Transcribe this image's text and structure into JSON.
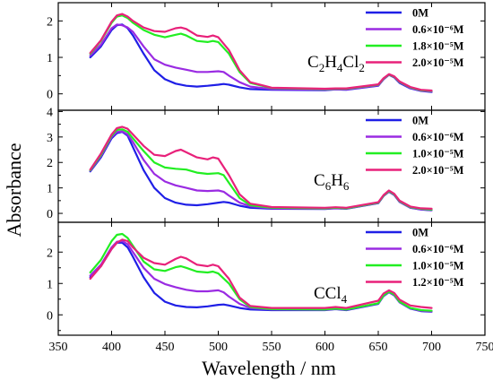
{
  "chart_data": {
    "type": "line",
    "xlabel": "Wavelength / nm",
    "ylabel": "Absorbance",
    "xlim": [
      350,
      750
    ],
    "x_ticks": [
      "350",
      "400",
      "450",
      "500",
      "550",
      "600",
      "650",
      "700",
      "750"
    ],
    "legend_placement": "top-right",
    "grid": false,
    "colors": {
      "blue": "#1f1fe6",
      "violet": "#9a2be2",
      "green": "#22ee22",
      "magenta": "#e8217a"
    },
    "panels": [
      {
        "solvent_label": {
          "base1": "C",
          "sub1": "2",
          "base2": "H",
          "sub2": "4",
          "base3": "Cl",
          "sub3": "2"
        },
        "ylim": [
          -0.45,
          2.5
        ],
        "y_ticks": [
          "0",
          "1",
          "2"
        ],
        "legend": [
          "0M",
          "0.6×10⁻⁶M",
          "1.8×10⁻⁵M",
          "2.0×10⁻⁵M"
        ],
        "series": [
          {
            "name": "0M",
            "color": "blue",
            "x": [
              380,
              390,
              400,
              405,
              410,
              415,
              420,
              430,
              440,
              450,
              460,
              470,
              480,
              490,
              500,
              505,
              510,
              520,
              530,
              550,
              600,
              610,
              620,
              650,
              655,
              660,
              665,
              670,
              680,
              690,
              700
            ],
            "y": [
              1.0,
              1.3,
              1.75,
              1.88,
              1.9,
              1.8,
              1.6,
              1.1,
              0.65,
              0.4,
              0.28,
              0.22,
              0.2,
              0.22,
              0.25,
              0.27,
              0.25,
              0.18,
              0.13,
              0.11,
              0.1,
              0.12,
              0.11,
              0.22,
              0.4,
              0.52,
              0.45,
              0.3,
              0.15,
              0.08,
              0.05
            ]
          },
          {
            "name": "0.6×10⁻⁶M",
            "color": "violet",
            "x": [
              380,
              390,
              400,
              405,
              410,
              415,
              420,
              430,
              440,
              450,
              460,
              470,
              480,
              490,
              500,
              505,
              510,
              520,
              530,
              550,
              600,
              610,
              620,
              650,
              655,
              660,
              665,
              670,
              680,
              690,
              700
            ],
            "y": [
              1.05,
              1.35,
              1.8,
              1.9,
              1.88,
              1.82,
              1.7,
              1.3,
              0.95,
              0.8,
              0.72,
              0.66,
              0.6,
              0.6,
              0.62,
              0.6,
              0.5,
              0.32,
              0.2,
              0.13,
              0.11,
              0.12,
              0.12,
              0.23,
              0.4,
              0.52,
              0.46,
              0.32,
              0.16,
              0.09,
              0.06
            ]
          },
          {
            "name": "1.8×10⁻⁵M",
            "color": "green",
            "x": [
              380,
              390,
              400,
              405,
              410,
              415,
              420,
              430,
              440,
              450,
              460,
              465,
              470,
              480,
              490,
              495,
              500,
              510,
              520,
              530,
              550,
              600,
              610,
              620,
              650,
              655,
              660,
              665,
              670,
              680,
              690,
              700
            ],
            "y": [
              1.1,
              1.45,
              1.95,
              2.12,
              2.15,
              2.08,
              1.95,
              1.75,
              1.62,
              1.55,
              1.62,
              1.65,
              1.6,
              1.45,
              1.42,
              1.45,
              1.42,
              1.1,
              0.6,
              0.3,
              0.16,
              0.13,
              0.14,
              0.14,
              0.25,
              0.42,
              0.53,
              0.47,
              0.33,
              0.18,
              0.1,
              0.08
            ]
          },
          {
            "name": "2.0×10⁻⁵M",
            "color": "magenta",
            "x": [
              380,
              390,
              400,
              405,
              410,
              415,
              420,
              430,
              440,
              450,
              460,
              465,
              470,
              480,
              490,
              495,
              500,
              510,
              520,
              530,
              550,
              600,
              610,
              620,
              650,
              655,
              660,
              665,
              670,
              680,
              690,
              700
            ],
            "y": [
              1.12,
              1.47,
              1.98,
              2.15,
              2.19,
              2.12,
              2.0,
              1.82,
              1.72,
              1.7,
              1.8,
              1.82,
              1.78,
              1.6,
              1.56,
              1.6,
              1.55,
              1.2,
              0.65,
              0.32,
              0.17,
              0.14,
              0.15,
              0.15,
              0.26,
              0.43,
              0.54,
              0.48,
              0.34,
              0.19,
              0.11,
              0.09
            ]
          }
        ]
      },
      {
        "solvent_label": {
          "base1": "C",
          "sub1": "6",
          "base2": "H",
          "sub2": "6",
          "base3": "",
          "sub3": ""
        },
        "ylim": [
          -0.35,
          4.05
        ],
        "y_ticks": [
          "0",
          "1",
          "2",
          "3",
          "4"
        ],
        "legend": [
          "0M",
          "0.6×10⁻⁶M",
          "1.0×10⁻⁵M",
          "2.0×10⁻⁵M"
        ],
        "series": [
          {
            "name": "0M",
            "color": "blue",
            "x": [
              380,
              390,
              400,
              405,
              410,
              415,
              420,
              430,
              440,
              450,
              460,
              470,
              480,
              490,
              500,
              505,
              510,
              520,
              530,
              550,
              600,
              610,
              620,
              650,
              655,
              660,
              665,
              670,
              680,
              690,
              700
            ],
            "y": [
              1.65,
              2.2,
              2.95,
              3.15,
              3.2,
              3.05,
              2.6,
              1.7,
              1.0,
              0.6,
              0.42,
              0.34,
              0.32,
              0.36,
              0.42,
              0.45,
              0.42,
              0.3,
              0.22,
              0.18,
              0.17,
              0.2,
              0.18,
              0.4,
              0.68,
              0.85,
              0.72,
              0.45,
              0.22,
              0.15,
              0.12
            ]
          },
          {
            "name": "0.6×10⁻⁶M",
            "color": "violet",
            "x": [
              380,
              390,
              400,
              405,
              410,
              415,
              420,
              430,
              440,
              450,
              460,
              470,
              480,
              490,
              500,
              505,
              510,
              520,
              530,
              550,
              600,
              610,
              620,
              650,
              655,
              660,
              665,
              670,
              680,
              690,
              700
            ],
            "y": [
              1.68,
              2.25,
              3.0,
              3.2,
              3.22,
              3.1,
              2.8,
              2.1,
              1.55,
              1.25,
              1.1,
              1.0,
              0.9,
              0.88,
              0.9,
              0.85,
              0.7,
              0.42,
              0.28,
              0.2,
              0.18,
              0.21,
              0.19,
              0.41,
              0.69,
              0.86,
              0.73,
              0.46,
              0.23,
              0.16,
              0.13
            ]
          },
          {
            "name": "1.0×10⁻⁵M",
            "color": "green",
            "x": [
              380,
              390,
              400,
              405,
              410,
              415,
              420,
              430,
              440,
              450,
              460,
              470,
              480,
              490,
              500,
              505,
              510,
              520,
              530,
              550,
              600,
              610,
              620,
              650,
              655,
              660,
              665,
              670,
              680,
              690,
              700
            ],
            "y": [
              1.7,
              2.3,
              3.05,
              3.28,
              3.3,
              3.2,
              2.95,
              2.45,
              2.0,
              1.8,
              1.75,
              1.72,
              1.6,
              1.55,
              1.58,
              1.5,
              1.2,
              0.6,
              0.32,
              0.22,
              0.2,
              0.22,
              0.2,
              0.42,
              0.7,
              0.88,
              0.75,
              0.48,
              0.25,
              0.18,
              0.15
            ]
          },
          {
            "name": "2.0×10⁻⁵M",
            "color": "magenta",
            "x": [
              380,
              390,
              400,
              405,
              410,
              415,
              420,
              430,
              440,
              450,
              460,
              465,
              470,
              480,
              490,
              495,
              500,
              510,
              520,
              530,
              550,
              600,
              610,
              620,
              650,
              655,
              660,
              665,
              670,
              680,
              690,
              700
            ],
            "y": [
              1.72,
              2.35,
              3.1,
              3.35,
              3.4,
              3.32,
              3.1,
              2.65,
              2.3,
              2.25,
              2.45,
              2.5,
              2.4,
              2.2,
              2.12,
              2.2,
              2.15,
              1.5,
              0.75,
              0.38,
              0.25,
              0.22,
              0.24,
              0.22,
              0.44,
              0.72,
              0.9,
              0.77,
              0.5,
              0.27,
              0.2,
              0.18
            ]
          }
        ]
      },
      {
        "solvent_label": {
          "base1": "CCl",
          "sub1": "4",
          "base2": "",
          "sub2": "",
          "base3": "",
          "sub3": ""
        },
        "ylim": [
          -0.65,
          2.95
        ],
        "y_ticks": [
          "0",
          "1",
          "2"
        ],
        "legend": [
          "0M",
          "0.6×10⁻⁶M",
          "1.0×10⁻⁵M",
          "1.2×10⁻⁵M"
        ],
        "series": [
          {
            "name": "0M",
            "color": "blue",
            "x": [
              380,
              390,
              400,
              405,
              410,
              415,
              420,
              430,
              440,
              450,
              460,
              470,
              480,
              490,
              500,
              505,
              510,
              520,
              530,
              550,
              600,
              610,
              620,
              650,
              655,
              660,
              665,
              670,
              680,
              690,
              700
            ],
            "y": [
              1.2,
              1.55,
              2.1,
              2.3,
              2.3,
              2.15,
              1.85,
              1.2,
              0.7,
              0.42,
              0.3,
              0.25,
              0.24,
              0.27,
              0.32,
              0.33,
              0.3,
              0.22,
              0.17,
              0.15,
              0.15,
              0.18,
              0.15,
              0.35,
              0.6,
              0.72,
              0.62,
              0.4,
              0.2,
              0.12,
              0.1
            ]
          },
          {
            "name": "0.6×10⁻⁶M",
            "color": "violet",
            "x": [
              380,
              390,
              400,
              405,
              410,
              415,
              420,
              430,
              440,
              450,
              460,
              470,
              480,
              490,
              500,
              505,
              510,
              520,
              530,
              550,
              600,
              610,
              620,
              650,
              655,
              660,
              665,
              670,
              680,
              690,
              700
            ],
            "y": [
              1.25,
              1.6,
              2.15,
              2.33,
              2.35,
              2.25,
              2.0,
              1.5,
              1.15,
              0.98,
              0.88,
              0.8,
              0.75,
              0.75,
              0.78,
              0.72,
              0.58,
              0.35,
              0.22,
              0.17,
              0.16,
              0.19,
              0.16,
              0.36,
              0.61,
              0.73,
              0.63,
              0.41,
              0.21,
              0.13,
              0.11
            ]
          },
          {
            "name": "1.0×10⁻⁵M",
            "color": "green",
            "x": [
              380,
              390,
              400,
              405,
              410,
              415,
              420,
              430,
              440,
              450,
              460,
              465,
              470,
              480,
              490,
              495,
              500,
              510,
              520,
              530,
              550,
              600,
              610,
              620,
              650,
              655,
              660,
              665,
              670,
              680,
              690,
              700
            ],
            "y": [
              1.35,
              1.75,
              2.35,
              2.55,
              2.58,
              2.45,
              2.2,
              1.7,
              1.45,
              1.4,
              1.52,
              1.55,
              1.5,
              1.38,
              1.35,
              1.38,
              1.32,
              1.0,
              0.5,
              0.25,
              0.18,
              0.17,
              0.2,
              0.17,
              0.37,
              0.62,
              0.74,
              0.65,
              0.42,
              0.22,
              0.15,
              0.13
            ]
          },
          {
            "name": "1.2×10⁻⁵M",
            "color": "magenta",
            "x": [
              380,
              390,
              400,
              405,
              410,
              415,
              420,
              430,
              440,
              450,
              460,
              465,
              470,
              480,
              490,
              495,
              500,
              510,
              520,
              530,
              550,
              600,
              610,
              620,
              650,
              655,
              660,
              665,
              670,
              680,
              690,
              700
            ],
            "y": [
              1.15,
              1.55,
              2.1,
              2.3,
              2.4,
              2.35,
              2.15,
              1.82,
              1.65,
              1.6,
              1.78,
              1.85,
              1.8,
              1.6,
              1.55,
              1.6,
              1.55,
              1.15,
              0.55,
              0.28,
              0.22,
              0.22,
              0.25,
              0.22,
              0.45,
              0.68,
              0.78,
              0.7,
              0.48,
              0.3,
              0.25,
              0.22
            ]
          }
        ]
      }
    ]
  }
}
